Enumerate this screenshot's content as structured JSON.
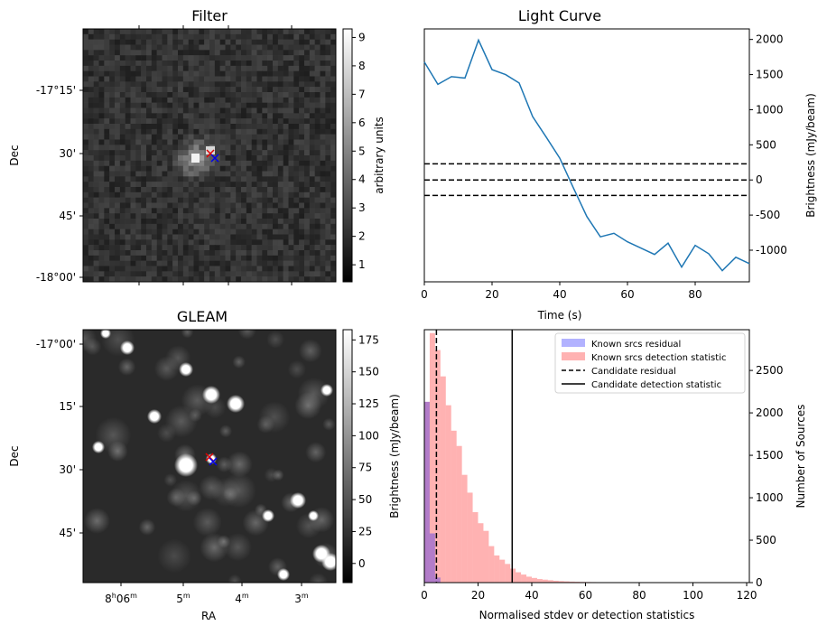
{
  "chart_data": [
    {
      "type": "heatmap",
      "title": "Filter",
      "ylabel": "Dec",
      "yticks": [
        "-17°15'",
        "30'",
        "45'",
        "-18°00'"
      ],
      "colorbar": {
        "label": "arbitrary units",
        "ticks": [
          "1",
          "2",
          "3",
          "4",
          "5",
          "6",
          "7",
          "8",
          "9"
        ],
        "range": [
          0.4,
          9.3
        ]
      },
      "markers": [
        "red-x",
        "blue-x"
      ]
    },
    {
      "type": "line",
      "title": "Light Curve",
      "xlabel": "Time (s)",
      "ylabel": "Brightness (mJy/beam)",
      "xlim": [
        0,
        96
      ],
      "ylim": [
        -1450,
        2150
      ],
      "xticks": [
        "0",
        "20",
        "40",
        "60",
        "80"
      ],
      "yticks": [
        "-1000",
        "-500",
        "0",
        "500",
        "1000",
        "1500",
        "2000"
      ],
      "series": [
        {
          "x": [
            0,
            4,
            8,
            12,
            16,
            20,
            24,
            28,
            32,
            36,
            40,
            44,
            48,
            52,
            56,
            60,
            64,
            68,
            72,
            76,
            80,
            84,
            88,
            92,
            96
          ],
          "y": [
            1680,
            1360,
            1470,
            1450,
            1990,
            1570,
            1500,
            1380,
            900,
            610,
            310,
            -110,
            -520,
            -810,
            -760,
            -880,
            -970,
            -1060,
            -900,
            -1240,
            -930,
            -1050,
            -1290,
            -1100,
            -1190
          ]
        }
      ],
      "hlines": [
        230,
        0,
        -220
      ],
      "color": "#1f77b4"
    },
    {
      "type": "heatmap",
      "title": "GLEAM",
      "xlabel": "RA",
      "ylabel": "Dec",
      "xticks": [
        "8h06m",
        "05m",
        "04m",
        "03m"
      ],
      "yticks": [
        "-17°00'",
        "15'",
        "30'",
        "45'"
      ],
      "colorbar": {
        "label": "Brightness (mJy/beam)",
        "ticks": [
          "0",
          "25",
          "50",
          "75",
          "100",
          "125",
          "150",
          "175"
        ],
        "range": [
          -15,
          183
        ]
      },
      "markers": [
        "red-x",
        "blue-x"
      ]
    },
    {
      "type": "bar",
      "xlabel": "Normalised stdev or detection statistics",
      "ylabel": "Number of Sources",
      "xlim": [
        0,
        121
      ],
      "ylim": [
        0,
        2980
      ],
      "xticks": [
        "0",
        "20",
        "40",
        "60",
        "80",
        "100",
        "120"
      ],
      "yticks": [
        "0",
        "500",
        "1000",
        "1500",
        "2000",
        "2500"
      ],
      "legend": [
        "Known srcs residual",
        "Known srcs detection statistic",
        "Candidate residual",
        "Candidate detection statistic"
      ],
      "legend_position": "top-right",
      "bin_width": 2,
      "series": [
        {
          "name": "Known srcs residual",
          "color": "#0000ff",
          "start": 0,
          "values": [
            2130,
            580,
            60
          ]
        },
        {
          "name": "Known srcs detection statistic",
          "color": "#ff0000",
          "start": 0,
          "values": [
            2130,
            2940,
            2740,
            2430,
            2090,
            1790,
            1610,
            1270,
            1060,
            830,
            700,
            610,
            430,
            320,
            270,
            220,
            165,
            122,
            95,
            70,
            55,
            42,
            35,
            28,
            22,
            18,
            15,
            12,
            10,
            8,
            7,
            6,
            5,
            5,
            4,
            4,
            3,
            3,
            3,
            2,
            2,
            2,
            2,
            2,
            2,
            2,
            2,
            2,
            2,
            2,
            2,
            2,
            2,
            2,
            2,
            2,
            2,
            2
          ]
        }
      ],
      "vlines": [
        {
          "name": "Candidate residual",
          "x": 4.5,
          "style": "dashed"
        },
        {
          "name": "Candidate detection statistic",
          "x": 32.7,
          "style": "solid"
        }
      ]
    }
  ]
}
